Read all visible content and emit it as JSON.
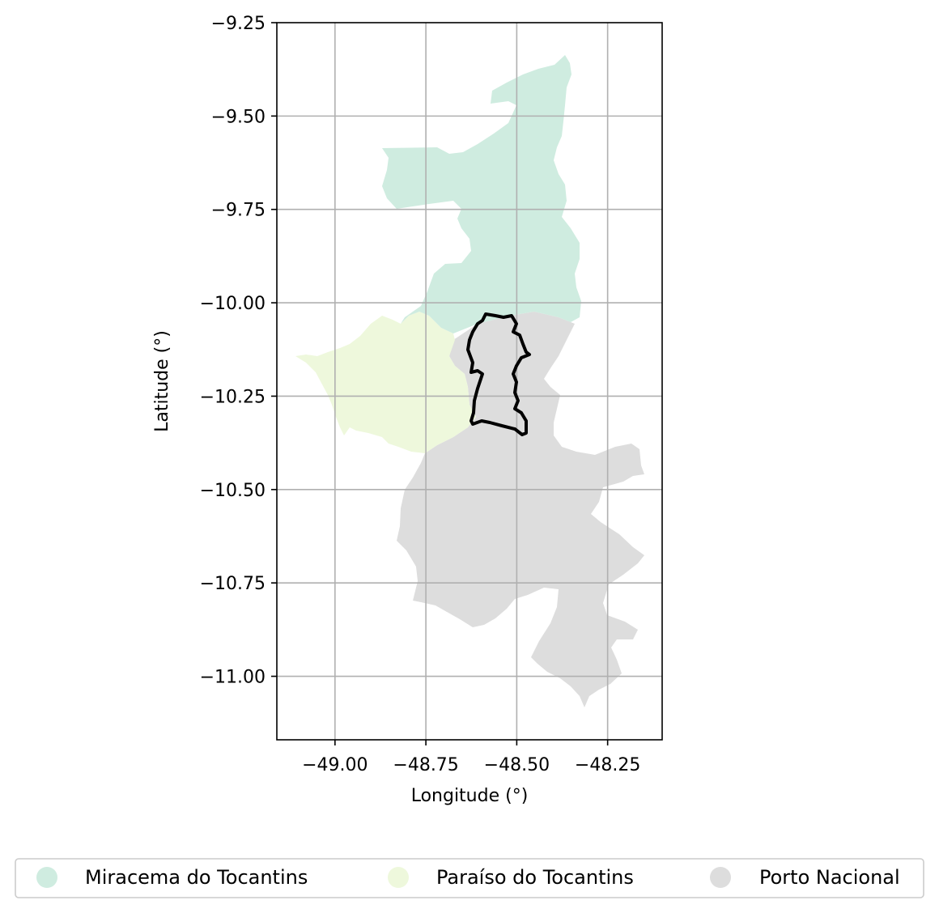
{
  "chart_data": {
    "type": "map",
    "xlabel": "Longitude (°)",
    "ylabel": "Latitude (°)",
    "xlim": [
      -49.16,
      -48.1
    ],
    "ylim": [
      -11.17,
      -9.25
    ],
    "xticks": [
      -49.0,
      -48.75,
      -48.5,
      -48.25
    ],
    "xtick_labels": [
      "−49.00",
      "−48.75",
      "−48.50",
      "−48.25"
    ],
    "yticks": [
      -9.25,
      -9.5,
      -9.75,
      -10.0,
      -10.25,
      -10.5,
      -10.75,
      -11.0
    ],
    "ytick_labels": [
      "−9.25",
      "−9.50",
      "−9.75",
      "−10.00",
      "−10.25",
      "−10.50",
      "−10.75",
      "−11.00"
    ],
    "grid": true,
    "legend_position": "bottom",
    "series": [
      {
        "name": "Miracema do Tocantins",
        "color": "#cfece0"
      },
      {
        "name": "Paraíso do Tocantins",
        "color": "#eef8dc"
      },
      {
        "name": "Porto Nacional",
        "color": "#dddddd"
      }
    ],
    "highlight": {
      "outline_color": "#000000"
    }
  }
}
